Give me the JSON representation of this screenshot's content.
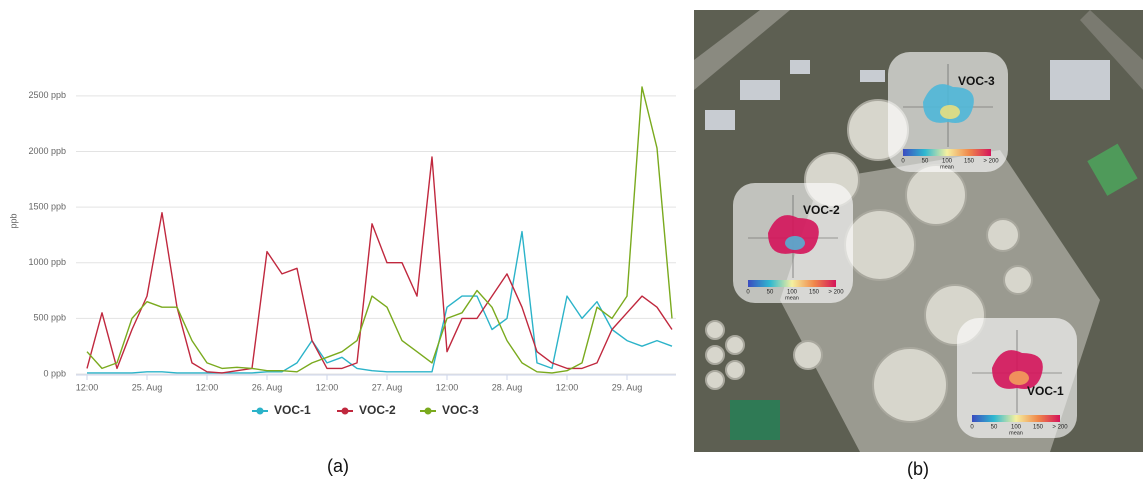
{
  "chart_data": {
    "type": "line",
    "y_label": "ppb",
    "x": [
      "24. Aug 12:00",
      "24. Aug 15:00",
      "24. Aug 18:00",
      "24. Aug 21:00",
      "25. Aug 00:00",
      "25. Aug 03:00",
      "25. Aug 06:00",
      "25. Aug 09:00",
      "25. Aug 12:00",
      "25. Aug 15:00",
      "25. Aug 18:00",
      "25. Aug 21:00",
      "26. Aug 00:00",
      "26. Aug 03:00",
      "26. Aug 06:00",
      "26. Aug 09:00",
      "26. Aug 12:00",
      "26. Aug 15:00",
      "26. Aug 18:00",
      "26. Aug 21:00",
      "27. Aug 00:00",
      "27. Aug 03:00",
      "27. Aug 06:00",
      "27. Aug 09:00",
      "27. Aug 12:00",
      "27. Aug 15:00",
      "27. Aug 18:00",
      "27. Aug 21:00",
      "28. Aug 00:00",
      "28. Aug 03:00",
      "28. Aug 06:00",
      "28. Aug 09:00",
      "28. Aug 12:00",
      "28. Aug 15:00",
      "28. Aug 18:00",
      "28. Aug 21:00",
      "29. Aug 00:00",
      "29. Aug 03:00",
      "29. Aug 06:00",
      "29. Aug 09:00"
    ],
    "xticks": [
      {
        "value": "24. Aug 12:00",
        "label": "12:00"
      },
      {
        "value": "25. Aug 00:00",
        "label": "25. Aug"
      },
      {
        "value": "25. Aug 12:00",
        "label": "12:00"
      },
      {
        "value": "26. Aug 00:00",
        "label": "26. Aug"
      },
      {
        "value": "26. Aug 12:00",
        "label": "12:00"
      },
      {
        "value": "27. Aug 00:00",
        "label": "27. Aug"
      },
      {
        "value": "27. Aug 12:00",
        "label": "12:00"
      },
      {
        "value": "28. Aug 00:00",
        "label": "28. Aug"
      },
      {
        "value": "28. Aug 12:00",
        "label": "12:00"
      },
      {
        "value": "29. Aug 00:00",
        "label": "29. Aug"
      }
    ],
    "ylim": [
      0,
      2750
    ],
    "yticks": [
      {
        "value": 0,
        "label": "0 ppb"
      },
      {
        "value": 500,
        "label": "500 ppb"
      },
      {
        "value": 1000,
        "label": "1000 ppb"
      },
      {
        "value": 1500,
        "label": "1500 ppb"
      },
      {
        "value": 2000,
        "label": "2000 ppb"
      },
      {
        "value": 2500,
        "label": "2500 ppb"
      }
    ],
    "grid": true,
    "legend": "bottom",
    "series": [
      {
        "name": "VOC-1",
        "color": "#2bb3c9",
        "values": [
          10,
          10,
          10,
          10,
          20,
          20,
          10,
          10,
          10,
          10,
          10,
          10,
          20,
          20,
          100,
          300,
          100,
          150,
          50,
          30,
          20,
          20,
          20,
          20,
          600,
          700,
          700,
          400,
          500,
          1280,
          100,
          50,
          700,
          500,
          650,
          400,
          300,
          250,
          300,
          250
        ]
      },
      {
        "name": "VOC-2",
        "color": "#c0283e",
        "values": [
          50,
          550,
          50,
          400,
          700,
          1450,
          600,
          100,
          20,
          10,
          30,
          50,
          1100,
          900,
          950,
          300,
          50,
          50,
          100,
          1350,
          1000,
          1000,
          700,
          1950,
          200,
          500,
          500,
          700,
          900,
          600,
          200,
          100,
          50,
          50,
          100,
          400,
          550,
          700,
          600,
          400
        ]
      },
      {
        "name": "VOC-3",
        "color": "#7aaa1e",
        "values": [
          200,
          50,
          100,
          500,
          650,
          600,
          600,
          300,
          100,
          50,
          60,
          50,
          30,
          30,
          20,
          100,
          150,
          200,
          300,
          700,
          600,
          300,
          200,
          100,
          500,
          550,
          750,
          600,
          300,
          100,
          20,
          10,
          30,
          100,
          600,
          500,
          700,
          2580,
          2030,
          500
        ]
      }
    ]
  },
  "captions": {
    "a": "(a)",
    "b": "(b)"
  },
  "map": {
    "sensors": [
      {
        "label": "VOC-3",
        "colorbar_ticks": [
          "0",
          "50",
          "100",
          "150",
          "> 200"
        ],
        "colorbar_title": "mean"
      },
      {
        "label": "VOC-2",
        "colorbar_ticks": [
          "0",
          "50",
          "100",
          "150",
          "> 200"
        ],
        "colorbar_title": "mean"
      },
      {
        "label": "VOC-1",
        "colorbar_ticks": [
          "0",
          "50",
          "100",
          "150",
          "> 200"
        ],
        "colorbar_title": "mean"
      }
    ]
  }
}
